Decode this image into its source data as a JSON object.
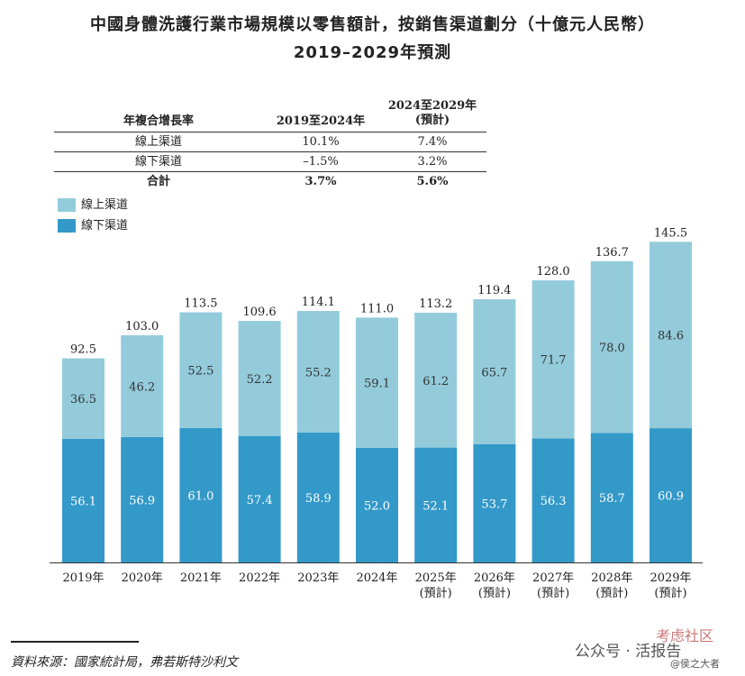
{
  "title_line1": "中國身體洗護行業市場規模以零售額計，按銷售渠道劃分（十億元人民幣）",
  "title_line2": "2019–2029年預測",
  "cagr_table": {
    "header_label": "年複合增長率",
    "header_col1": "2019至2024年",
    "header_col2_line1": "2024至2029年",
    "header_col2_line2": "(預計)",
    "rows": [
      {
        "label": "線上渠道",
        "v1": "10.1%",
        "v2": "7.4%"
      },
      {
        "label": "線下渠道",
        "v1": "–1.5%",
        "v2": "3.2%"
      },
      {
        "label": "合計",
        "v1": "3.7%",
        "v2": "5.6%"
      }
    ]
  },
  "legend": {
    "online": "線上渠道",
    "offline": "線下渠道"
  },
  "colors": {
    "online": "#93cbdb",
    "offline": "#3399c8"
  },
  "chart_data": {
    "type": "bar",
    "stacked": true,
    "title": "中國身體洗護行業市場規模以零售額計，按銷售渠道劃分（十億元人民幣）2019–2029年預測",
    "categories": [
      "2019年",
      "2020年",
      "2021年",
      "2022年",
      "2023年",
      "2024年",
      "2025年",
      "2026年",
      "2027年",
      "2028年",
      "2029年"
    ],
    "category_sublabels": [
      "",
      "",
      "",
      "",
      "",
      "",
      "(預計)",
      "(預計)",
      "(預計)",
      "(預計)",
      "(預計)"
    ],
    "series": [
      {
        "name": "線下渠道",
        "values": [
          56.1,
          56.9,
          61.0,
          57.4,
          58.9,
          52.0,
          52.1,
          53.7,
          56.3,
          58.7,
          60.9
        ]
      },
      {
        "name": "線上渠道",
        "values": [
          36.5,
          46.2,
          52.5,
          52.2,
          55.2,
          59.1,
          61.2,
          65.7,
          71.7,
          78.0,
          84.6
        ]
      }
    ],
    "totals": [
      92.5,
      103.0,
      113.5,
      109.6,
      114.1,
      111.0,
      113.2,
      119.4,
      128.0,
      136.7,
      145.5
    ],
    "ylim": [
      0,
      150
    ]
  },
  "source": "資料來源：國家統計局，弗若斯特沙利文",
  "watermark": {
    "text1": "公众号 · 活报告",
    "text2": "考虑社区",
    "text3": "@侯之大者"
  }
}
